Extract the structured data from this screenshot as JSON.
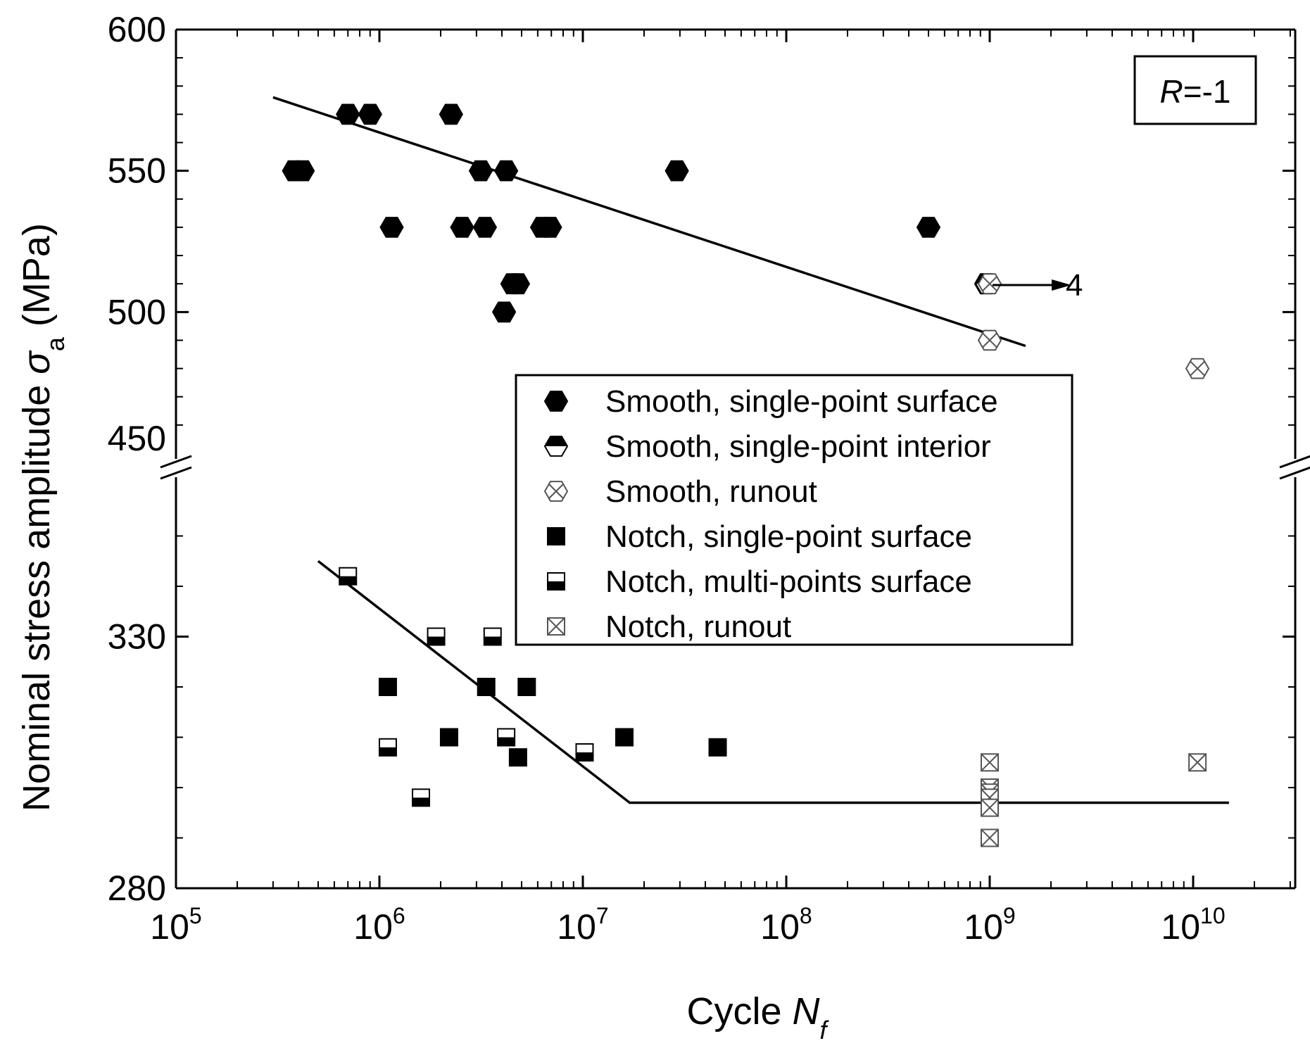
{
  "chart_data": {
    "type": "scatter",
    "title": "",
    "xlabel": "Cycle",
    "xlabel_symbol": "N",
    "xlabel_subscript": "f",
    "ylabel": "Nominal stress amplitude",
    "ylabel_symbol": "σ",
    "ylabel_subscript": "a",
    "ylabel_unit": "(MPa)",
    "x_scale": "log",
    "xlim": [
      100000,
      30000000000
    ],
    "x_ticks": [
      {
        "base": "10",
        "exp": "5"
      },
      {
        "base": "10",
        "exp": "6"
      },
      {
        "base": "10",
        "exp": "7"
      },
      {
        "base": "10",
        "exp": "8"
      },
      {
        "base": "10",
        "exp": "9"
      },
      {
        "base": "10",
        "exp": "10"
      }
    ],
    "ylim_upper": [
      450,
      600
    ],
    "ylim_lower": [
      280,
      360
    ],
    "y_ticks_upper": [
      "450",
      "500",
      "550",
      "600"
    ],
    "y_ticks_lower": [
      "280",
      "330"
    ],
    "axis_break": "between 360 and 450",
    "annotation_box": {
      "symbol": "R",
      "text": "=-1"
    },
    "runout_annotation": "4",
    "legend_position": "center-right",
    "legend": [
      {
        "marker": "hex-filled",
        "label": "Smooth, single-point surface"
      },
      {
        "marker": "hex-half",
        "label": "Smooth, single-point interior"
      },
      {
        "marker": "hex-cross",
        "label": "Smooth, runout"
      },
      {
        "marker": "square-filled",
        "label": "Notch, single-point surface"
      },
      {
        "marker": "square-half",
        "label": "Notch, multi-points surface"
      },
      {
        "marker": "square-cross",
        "label": "Notch, runout"
      }
    ],
    "series": [
      {
        "name": "Smooth, single-point surface",
        "marker": "hex-filled",
        "points": [
          [
            380000,
            550
          ],
          [
            420000,
            550
          ],
          [
            700000,
            570
          ],
          [
            900000,
            570
          ],
          [
            1150000,
            530
          ],
          [
            2250000,
            570
          ],
          [
            2550000,
            530
          ],
          [
            3150000,
            550
          ],
          [
            3300000,
            530
          ],
          [
            4100000,
            500
          ],
          [
            4200000,
            550
          ],
          [
            4500000,
            510
          ],
          [
            4800000,
            510
          ],
          [
            6300000,
            530
          ],
          [
            6900000,
            530
          ],
          [
            29000000,
            550
          ],
          [
            500000000,
            530
          ],
          [
            960000000,
            510
          ]
        ]
      },
      {
        "name": "Smooth, single-point interior",
        "marker": "hex-half",
        "points": [
          [
            970000000,
            510
          ]
        ]
      },
      {
        "name": "Smooth, runout",
        "marker": "hex-cross",
        "points": [
          [
            1000000000,
            510
          ],
          [
            1000000000,
            490
          ],
          [
            10500000000,
            480
          ]
        ]
      },
      {
        "name": "Notch, single-point surface",
        "marker": "square-filled",
        "points": [
          [
            1100000,
            320
          ],
          [
            2200000,
            310
          ],
          [
            3350000,
            320
          ],
          [
            4800000,
            306
          ],
          [
            5300000,
            320
          ],
          [
            16000000,
            310
          ],
          [
            46000000,
            308
          ]
        ]
      },
      {
        "name": "Notch, multi-points surface",
        "marker": "square-half",
        "points": [
          [
            700000,
            342
          ],
          [
            1100000,
            308
          ],
          [
            1600000,
            298
          ],
          [
            1900000,
            330
          ],
          [
            3600000,
            330
          ],
          [
            4200000,
            310
          ],
          [
            10200000,
            307
          ]
        ]
      },
      {
        "name": "Notch, runout",
        "marker": "square-cross",
        "points": [
          [
            1000000000,
            305
          ],
          [
            1000000000,
            300
          ],
          [
            1000000000,
            299
          ],
          [
            1000000000,
            298
          ],
          [
            1000000000,
            296
          ],
          [
            1000000000,
            290
          ],
          [
            10500000000,
            305
          ]
        ]
      }
    ],
    "fit_lines": [
      {
        "name": "Smooth fit",
        "points": [
          [
            300000,
            576
          ],
          [
            1500000000,
            488
          ]
        ]
      },
      {
        "name": "Notch fit",
        "points": [
          [
            500000,
            345
          ],
          [
            17000000,
            297
          ],
          [
            15000000000,
            297
          ]
        ]
      }
    ]
  }
}
